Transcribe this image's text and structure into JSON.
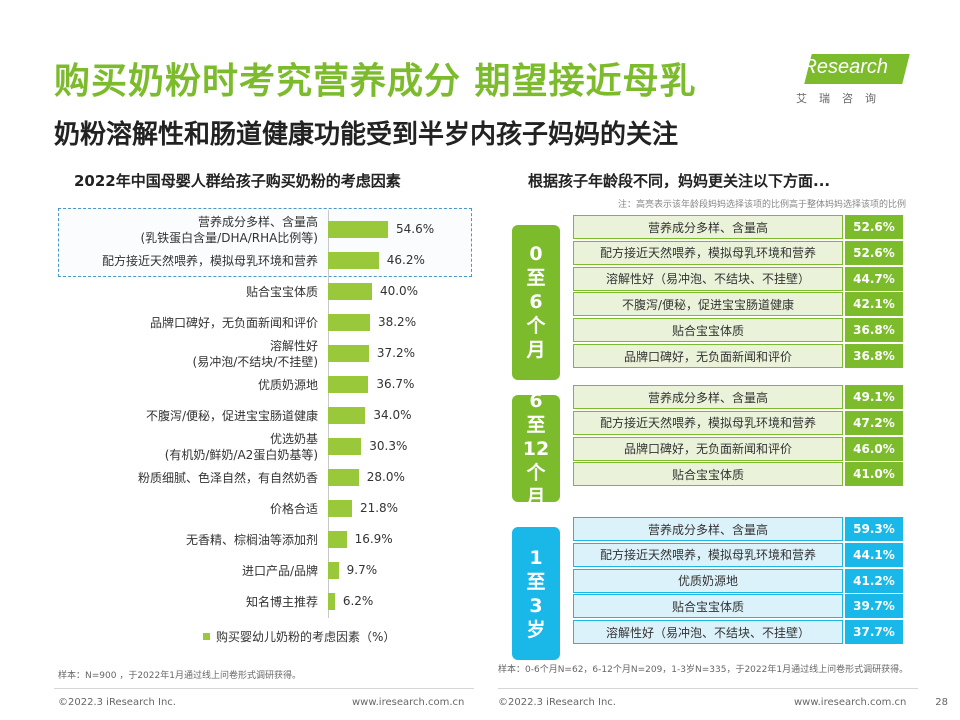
{
  "header": {
    "title": "购买奶粉时考究营养成分 期望接近母乳",
    "subtitle": "奶粉溶解性和肠道健康功能受到半岁内孩子妈妈的关注",
    "logo_text": "iResearch",
    "logo_sub": "艾瑞咨询"
  },
  "left_panel": {
    "title": "2022年中国母婴人群给孩子购买奶粉的考虑因素",
    "sample_note": "样本：N=900 ，于2022年1月通过线上问卷形式调研获得。"
  },
  "right_panel": {
    "title": "根据孩子年龄段不同，妈妈更关注以下方面...",
    "note": "注：高亮表示该年龄段妈妈选择该项的比例高于整体妈妈选择该项的比例",
    "sample_note": "样本：0-6个月N=62，6-12个月N=209，1-3岁N=335，于2022年1月通过线上问卷形式调研获得。",
    "groups": [
      {
        "tab": [
          "0",
          "至",
          "6",
          "个",
          "月"
        ],
        "color": "#7cbb2b",
        "rows": [
          {
            "label": "营养成分多样、含量高",
            "value": "52.6%"
          },
          {
            "label": "配方接近天然喂养，模拟母乳环境和营养",
            "value": "52.6%"
          },
          {
            "label": "溶解性好（易冲泡、不结块、不挂壁）",
            "value": "44.7%"
          },
          {
            "label": "不腹泻/便秘，促进宝宝肠道健康",
            "value": "42.1%"
          },
          {
            "label": "贴合宝宝体质",
            "value": "36.8%"
          },
          {
            "label": "品牌口碑好，无负面新闻和评价",
            "value": "36.8%"
          }
        ]
      },
      {
        "tab": [
          "6",
          "至",
          "12",
          "个",
          "月"
        ],
        "color": "#7cbb2b",
        "rows": [
          {
            "label": "营养成分多样、含量高",
            "value": "49.1%"
          },
          {
            "label": "配方接近天然喂养，模拟母乳环境和营养",
            "value": "47.2%"
          },
          {
            "label": "品牌口碑好，无负面新闻和评价",
            "value": "46.0%"
          },
          {
            "label": "贴合宝宝体质",
            "value": "41.0%"
          }
        ]
      },
      {
        "tab": [
          "1",
          "至",
          "3",
          "岁"
        ],
        "color": "#1ab8e8",
        "rows": [
          {
            "label": "营养成分多样、含量高",
            "value": "59.3%"
          },
          {
            "label": "配方接近天然喂养，模拟母乳环境和营养",
            "value": "44.1%"
          },
          {
            "label": "优质奶源地",
            "value": "41.2%"
          },
          {
            "label": "贴合宝宝体质",
            "value": "39.7%"
          },
          {
            "label": "溶解性好（易冲泡、不结块、不挂壁）",
            "value": "37.7%"
          }
        ]
      }
    ]
  },
  "footer": {
    "left_copyright": "©2022.3 iResearch Inc.",
    "left_url": "www.iresearch.com.cn",
    "right_copyright": "©2022.3 iResearch Inc.",
    "right_url": "www.iresearch.com.cn",
    "page": "28"
  },
  "colors": {
    "brand_green": "#7cbb2b",
    "bar_green": "#9ac83b",
    "highlight_blue": "#1ab8e8",
    "green_row_bg": "#eaf3d9",
    "blue_row_bg": "#dcf2fb"
  },
  "chart_data": {
    "type": "bar",
    "orientation": "horizontal",
    "categories": [
      "营养成分多样、含量高\n(乳铁蛋白含量/DHA/RHA比例等)",
      "配方接近天然喂养，模拟母乳环境和营养",
      "贴合宝宝体质",
      "品牌口碑好，无负面新闻和评价",
      "溶解性好\n(易冲泡/不结块/不挂壁)",
      "优质奶源地",
      "不腹泻/便秘，促进宝宝肠道健康",
      "优选奶基\n(有机奶/鲜奶/A2蛋白奶基等)",
      "粉质细腻、色泽自然，有自然奶香",
      "价格合适",
      "无香精、棕榈油等添加剂",
      "进口产品/品牌",
      "知名博主推荐"
    ],
    "series": [
      {
        "name": "购买婴幼儿奶粉的考虑因素（%）",
        "values": [
          54.6,
          46.2,
          40.0,
          38.2,
          37.2,
          36.7,
          34.0,
          30.3,
          28.0,
          21.8,
          16.9,
          9.7,
          6.2
        ],
        "labels": [
          "54.6%",
          "46.2%",
          "40.0%",
          "38.2%",
          "37.2%",
          "36.7%",
          "34.0%",
          "30.3%",
          "28.0%",
          "21.8%",
          "16.9%",
          "9.7%",
          "6.2%"
        ]
      }
    ],
    "highlighted_categories": [
      0,
      1
    ],
    "grid": false,
    "legend": "bottom"
  }
}
